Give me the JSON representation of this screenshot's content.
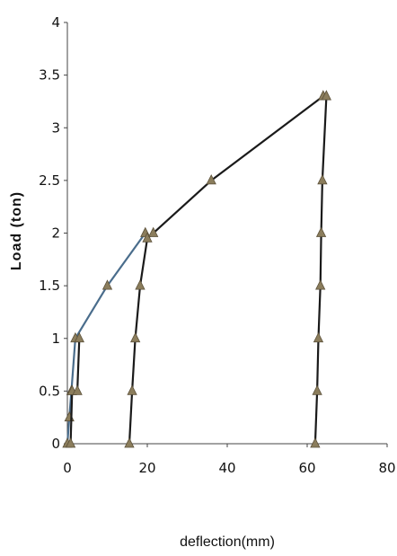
{
  "chart_data": {
    "type": "scatter",
    "title": "",
    "xlabel": "deflection(mm)",
    "ylabel": "Load (ton)",
    "xlim": [
      0,
      80
    ],
    "ylim": [
      0,
      4
    ],
    "x_ticks": [
      "0",
      "20",
      "40",
      "60",
      "80"
    ],
    "y_ticks": [
      "0",
      "0.5",
      "1",
      "1.5",
      "2",
      "2.5",
      "3",
      "3.5",
      "4"
    ],
    "grid": false,
    "legend": "none",
    "series": [
      {
        "color": "#4a6d8c",
        "marker": "triangle",
        "points": [
          [
            0,
            0
          ],
          [
            0.5,
            0.25
          ],
          [
            1.0,
            0.5
          ],
          [
            2.0,
            1.0
          ],
          [
            10,
            1.5
          ],
          [
            19.5,
            2.0
          ]
        ]
      },
      {
        "color": "#1a1a1a",
        "marker": "triangle",
        "points": [
          [
            0.8,
            0
          ],
          [
            1.2,
            0.5
          ],
          [
            2.5,
            0.5
          ],
          [
            3.0,
            1.0
          ]
        ]
      },
      {
        "color": "#1a1a1a",
        "marker": "triangle",
        "points": [
          [
            15.5,
            0
          ],
          [
            16.2,
            0.5
          ],
          [
            17.0,
            1.0
          ],
          [
            18.2,
            1.5
          ],
          [
            20.0,
            1.95
          ],
          [
            21.5,
            2.0
          ],
          [
            36,
            2.5
          ],
          [
            64,
            3.3
          ]
        ]
      },
      {
        "color": "#1a1a1a",
        "marker": "triangle",
        "points": [
          [
            64.8,
            3.3
          ],
          [
            63.8,
            2.5
          ],
          [
            63.5,
            2.0
          ],
          [
            63.3,
            1.5
          ],
          [
            62.8,
            1.0
          ],
          [
            62.5,
            0.5
          ],
          [
            62.0,
            0
          ]
        ]
      }
    ]
  }
}
